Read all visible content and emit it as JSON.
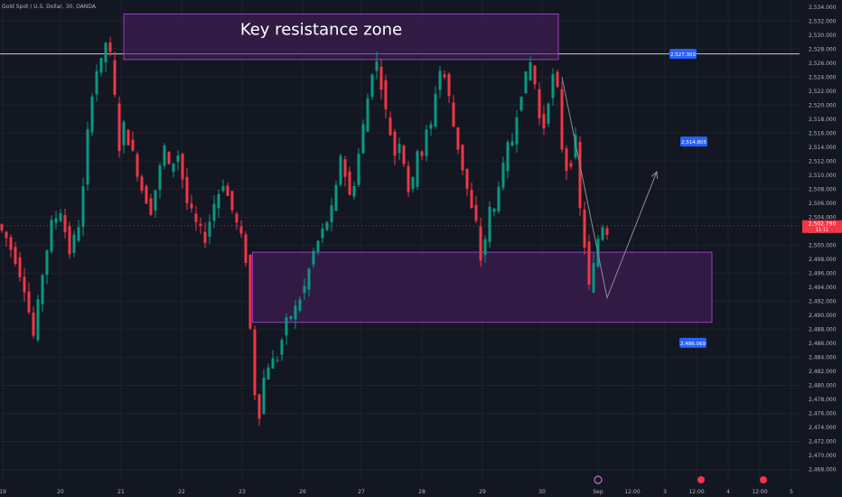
{
  "header": {
    "symbol_text": "Gold Spot / U.S. Dollar, 30, OANDA"
  },
  "colors": {
    "background": "#131722",
    "grid": "#1e222d",
    "up": "#089981",
    "down": "#f23645",
    "zone_fill": "#4a1e5e",
    "zone_border": "#9b3dc6",
    "resistance_line": "#c8c8c8",
    "price_tag": "#f23645",
    "label_tag": "#2962ff",
    "projection": "#8c8f98",
    "axis_text": "#b2b5be"
  },
  "chart_data": {
    "type": "candlestick",
    "ylim": [
      2466,
      2535
    ],
    "y_ticks": [
      2468,
      2470,
      2472,
      2474,
      2476,
      2478,
      2480,
      2482,
      2484,
      2486,
      2488,
      2490,
      2492,
      2494,
      2496,
      2498,
      2500,
      2502,
      2504,
      2506,
      2508,
      2510,
      2512,
      2514,
      2516,
      2518,
      2520,
      2522,
      2524,
      2526,
      2528,
      2530,
      2532,
      2534
    ],
    "x_ticks": [
      "19",
      "20",
      "21",
      "22",
      "23",
      "26",
      "27",
      "28",
      "29",
      "30",
      "Sep",
      "12:00",
      "3",
      "12:00",
      "4",
      "12:00",
      "5"
    ],
    "ohlc_path": [
      [
        0,
        2503
      ],
      [
        2,
        2501
      ],
      [
        4,
        2498
      ],
      [
        6,
        2494
      ],
      [
        8,
        2487
      ],
      [
        10,
        2496
      ],
      [
        12,
        2503
      ],
      [
        14,
        2505
      ],
      [
        16,
        2499
      ],
      [
        18,
        2503
      ],
      [
        19,
        2508
      ],
      [
        20,
        2516
      ],
      [
        21,
        2522
      ],
      [
        22,
        2525
      ],
      [
        23,
        2526
      ],
      [
        24,
        2529
      ],
      [
        25,
        2527
      ],
      [
        26,
        2521
      ],
      [
        27,
        2514
      ],
      [
        28,
        2517
      ],
      [
        30,
        2513
      ],
      [
        32,
        2508
      ],
      [
        34,
        2505
      ],
      [
        35,
        2508
      ],
      [
        36,
        2511
      ],
      [
        37,
        2514
      ],
      [
        38,
        2511
      ],
      [
        40,
        2513
      ],
      [
        42,
        2506
      ],
      [
        44,
        2503
      ],
      [
        46,
        2501
      ],
      [
        48,
        2506
      ],
      [
        50,
        2509
      ],
      [
        52,
        2505
      ],
      [
        54,
        2501
      ],
      [
        55,
        2498
      ],
      [
        56,
        2488
      ],
      [
        57,
        2479
      ],
      [
        58,
        2476
      ],
      [
        59,
        2481
      ],
      [
        60,
        2483
      ],
      [
        62,
        2484
      ],
      [
        64,
        2489
      ],
      [
        66,
        2491
      ],
      [
        68,
        2494
      ],
      [
        70,
        2499
      ],
      [
        72,
        2502
      ],
      [
        74,
        2505
      ],
      [
        75,
        2508
      ],
      [
        76,
        2513
      ],
      [
        77,
        2510
      ],
      [
        78,
        2507
      ],
      [
        79,
        2509
      ],
      [
        80,
        2513
      ],
      [
        81,
        2517
      ],
      [
        82,
        2521
      ],
      [
        83,
        2525
      ],
      [
        84,
        2526
      ],
      [
        85,
        2523
      ],
      [
        86,
        2519
      ],
      [
        87,
        2516
      ],
      [
        88,
        2513
      ],
      [
        89,
        2515
      ],
      [
        90,
        2512
      ],
      [
        91,
        2508
      ],
      [
        92,
        2509
      ],
      [
        93,
        2514
      ],
      [
        94,
        2513
      ],
      [
        95,
        2516
      ],
      [
        96,
        2517
      ],
      [
        97,
        2522
      ],
      [
        98,
        2525
      ],
      [
        99,
        2524
      ],
      [
        100,
        2521
      ],
      [
        101,
        2517
      ],
      [
        102,
        2514
      ],
      [
        103,
        2511
      ],
      [
        104,
        2508
      ],
      [
        105,
        2505
      ],
      [
        106,
        2503
      ],
      [
        107,
        2498
      ],
      [
        108,
        2501
      ],
      [
        109,
        2505
      ],
      [
        110,
        2505
      ],
      [
        111,
        2509
      ],
      [
        112,
        2511
      ],
      [
        113,
        2514
      ],
      [
        114,
        2515
      ],
      [
        115,
        2519
      ],
      [
        116,
        2522
      ],
      [
        117,
        2524
      ],
      [
        118,
        2526
      ],
      [
        119,
        2523
      ],
      [
        120,
        2518
      ],
      [
        121,
        2517
      ],
      [
        122,
        2521
      ],
      [
        123,
        2524
      ],
      [
        124,
        2522
      ],
      [
        125,
        2514
      ],
      [
        126,
        2511
      ],
      [
        127,
        2512
      ],
      [
        128,
        2515
      ],
      [
        129,
        2505
      ],
      [
        130,
        2500
      ],
      [
        131,
        2494
      ],
      [
        132,
        2497
      ],
      [
        133,
        2501
      ],
      [
        134,
        2503
      ],
      [
        135,
        2502
      ]
    ],
    "zones": [
      {
        "label": "Key resistance zone",
        "y_top": 2533,
        "y_bottom": 2526.5,
        "i_start": 26,
        "i_end": 124
      },
      {
        "label": "",
        "y_top": 2499,
        "y_bottom": 2489,
        "i_start": 54.5,
        "i_end": 158
      }
    ],
    "resistance_line": 2527.303,
    "projection": [
      {
        "i": 124,
        "y": 2524
      },
      {
        "i": 134,
        "y": 2492.5
      },
      {
        "i": 145,
        "y": 2510.5
      }
    ],
    "labels": [
      {
        "text": "2,527.303",
        "y": 2527.303
      },
      {
        "text": "2,514.805",
        "y": 2514.805
      },
      {
        "text": "2,486.069",
        "y": 2486.069
      }
    ],
    "last_price": {
      "value": "2,502.790",
      "sub": "11:11",
      "y": 2502.79
    }
  }
}
